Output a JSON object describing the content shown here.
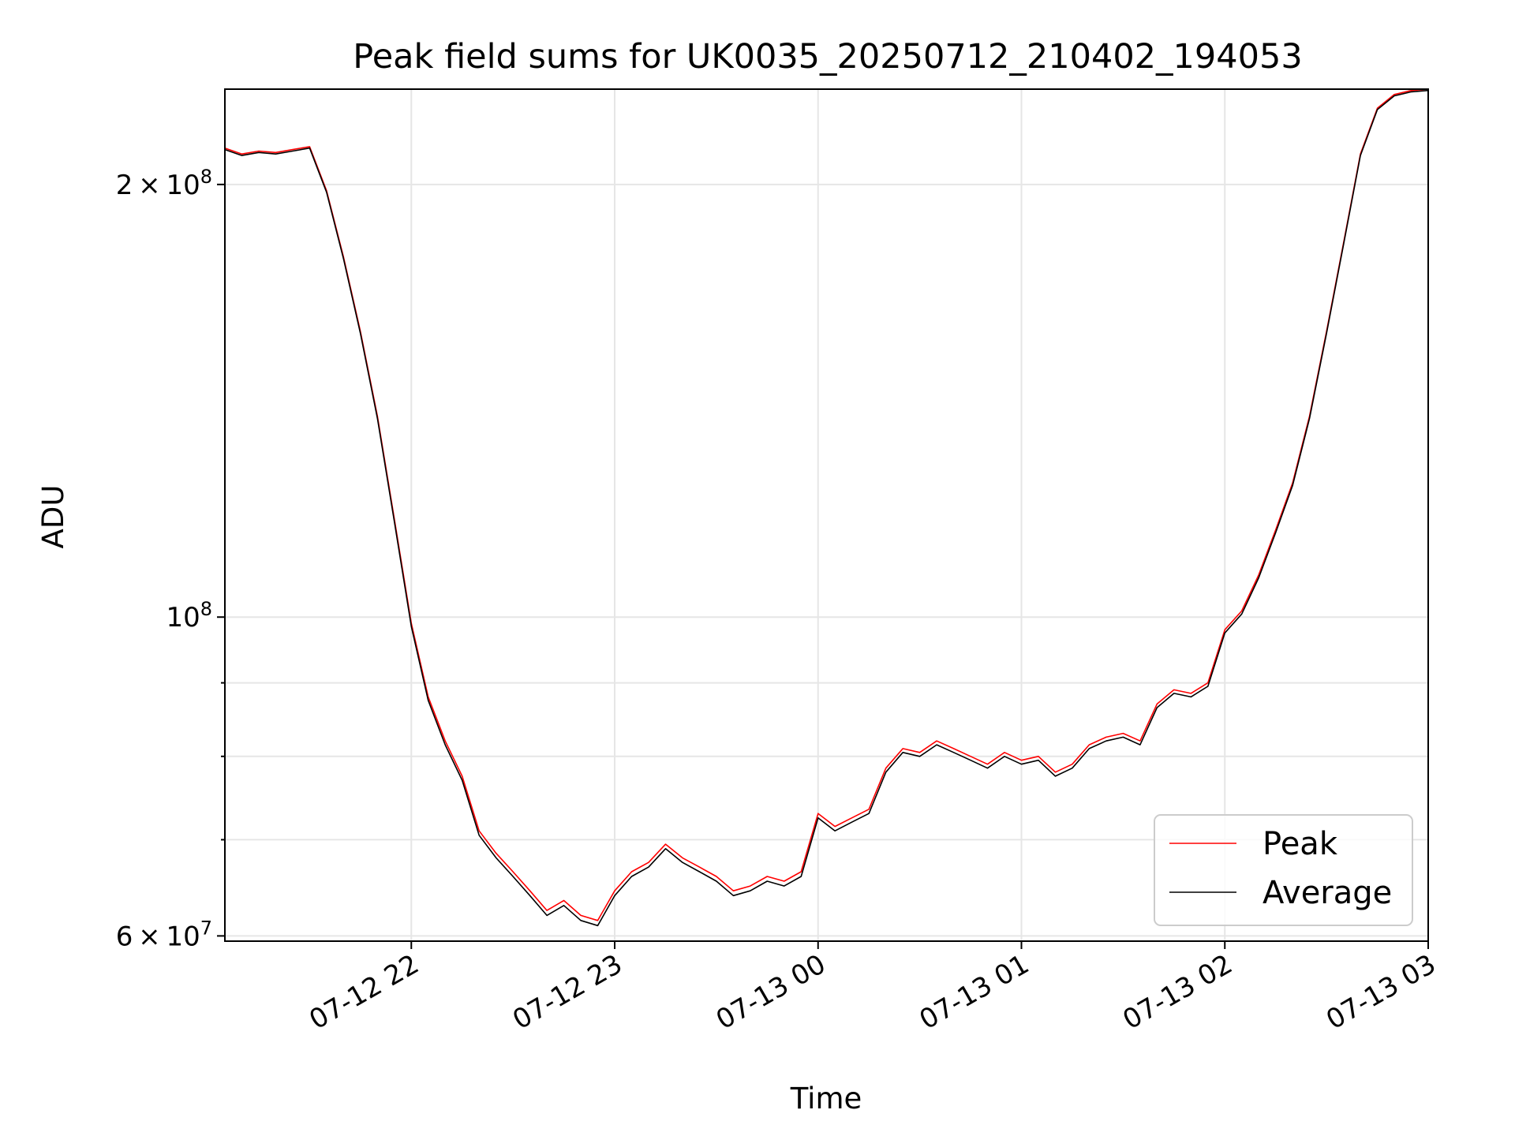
{
  "chart_data": {
    "type": "line",
    "title": "Peak field sums for UK0035_20250712_210402_194053",
    "xlabel": "Time",
    "ylabel": "ADU",
    "yscale": "log",
    "ylim": [
      59500000,
      233000000
    ],
    "xlim": [
      "2025-07-12 21:05",
      "2025-07-13 03:00"
    ],
    "x_ticks": [
      {
        "t": "2025-07-12 22:00",
        "label": "07-12 22"
      },
      {
        "t": "2025-07-12 23:00",
        "label": "07-12 23"
      },
      {
        "t": "2025-07-13 00:00",
        "label": "07-13 00"
      },
      {
        "t": "2025-07-13 01:00",
        "label": "07-13 01"
      },
      {
        "t": "2025-07-13 02:00",
        "label": "07-13 02"
      },
      {
        "t": "2025-07-13 03:00",
        "label": "07-13 03"
      }
    ],
    "y_ticks_major": [
      {
        "v": 60000000,
        "base": "6",
        "mult": "×",
        "pow": "10",
        "exp": "7"
      },
      {
        "v": 100000000,
        "base": "",
        "mult": "",
        "pow": "10",
        "exp": "8"
      },
      {
        "v": 200000000,
        "base": "2",
        "mult": "×",
        "pow": "10",
        "exp": "8"
      }
    ],
    "y_ticks_minor": [
      70000000,
      80000000,
      90000000
    ],
    "grid": true,
    "legend_position": "lower-right",
    "series": [
      {
        "name": "Peak",
        "color": "#ff0000",
        "points": [
          [
            "2025-07-12 21:05",
            212000000
          ],
          [
            "2025-07-12 21:10",
            210000000
          ],
          [
            "2025-07-12 21:15",
            211000000
          ],
          [
            "2025-07-12 21:20",
            210500000
          ],
          [
            "2025-07-12 21:25",
            211500000
          ],
          [
            "2025-07-12 21:30",
            212500000
          ],
          [
            "2025-07-12 21:35",
            198000000
          ],
          [
            "2025-07-12 21:40",
            178000000
          ],
          [
            "2025-07-12 21:45",
            158000000
          ],
          [
            "2025-07-12 21:50",
            138000000
          ],
          [
            "2025-07-12 21:55",
            117000000
          ],
          [
            "2025-07-12 22:00",
            99000000
          ],
          [
            "2025-07-12 22:05",
            88000000
          ],
          [
            "2025-07-12 22:10",
            82000000
          ],
          [
            "2025-07-12 22:15",
            77500000
          ],
          [
            "2025-07-12 22:20",
            71000000
          ],
          [
            "2025-07-12 22:25",
            68500000
          ],
          [
            "2025-07-12 22:30",
            66500000
          ],
          [
            "2025-07-12 22:35",
            64500000
          ],
          [
            "2025-07-12 22:40",
            62500000
          ],
          [
            "2025-07-12 22:45",
            63500000
          ],
          [
            "2025-07-12 22:50",
            62000000
          ],
          [
            "2025-07-12 22:55",
            61500000
          ],
          [
            "2025-07-12 23:00",
            64500000
          ],
          [
            "2025-07-12 23:05",
            66500000
          ],
          [
            "2025-07-12 23:10",
            67500000
          ],
          [
            "2025-07-12 23:15",
            69500000
          ],
          [
            "2025-07-12 23:20",
            68000000
          ],
          [
            "2025-07-12 23:25",
            67000000
          ],
          [
            "2025-07-12 23:30",
            66000000
          ],
          [
            "2025-07-12 23:35",
            64500000
          ],
          [
            "2025-07-12 23:40",
            65000000
          ],
          [
            "2025-07-12 23:45",
            66000000
          ],
          [
            "2025-07-12 23:50",
            65500000
          ],
          [
            "2025-07-12 23:55",
            66500000
          ],
          [
            "2025-07-13 00:00",
            73000000
          ],
          [
            "2025-07-13 00:05",
            71500000
          ],
          [
            "2025-07-13 00:10",
            72500000
          ],
          [
            "2025-07-13 00:15",
            73500000
          ],
          [
            "2025-07-13 00:20",
            78500000
          ],
          [
            "2025-07-13 00:25",
            81000000
          ],
          [
            "2025-07-13 00:30",
            80500000
          ],
          [
            "2025-07-13 00:35",
            82000000
          ],
          [
            "2025-07-13 00:40",
            81000000
          ],
          [
            "2025-07-13 00:45",
            80000000
          ],
          [
            "2025-07-13 00:50",
            79000000
          ],
          [
            "2025-07-13 00:55",
            80500000
          ],
          [
            "2025-07-13 01:00",
            79500000
          ],
          [
            "2025-07-13 01:05",
            80000000
          ],
          [
            "2025-07-13 01:10",
            78000000
          ],
          [
            "2025-07-13 01:15",
            79000000
          ],
          [
            "2025-07-13 01:20",
            81500000
          ],
          [
            "2025-07-13 01:25",
            82500000
          ],
          [
            "2025-07-13 01:30",
            83000000
          ],
          [
            "2025-07-13 01:35",
            82000000
          ],
          [
            "2025-07-13 01:40",
            87000000
          ],
          [
            "2025-07-13 01:45",
            89000000
          ],
          [
            "2025-07-13 01:50",
            88500000
          ],
          [
            "2025-07-13 01:55",
            90000000
          ],
          [
            "2025-07-13 02:00",
            98000000
          ],
          [
            "2025-07-13 02:05",
            101000000
          ],
          [
            "2025-07-13 02:10",
            107000000
          ],
          [
            "2025-07-13 02:15",
            115000000
          ],
          [
            "2025-07-13 02:20",
            124000000
          ],
          [
            "2025-07-13 02:25",
            138000000
          ],
          [
            "2025-07-13 02:30",
            158000000
          ],
          [
            "2025-07-13 02:35",
            182000000
          ],
          [
            "2025-07-13 02:40",
            210000000
          ],
          [
            "2025-07-13 02:45",
            226000000
          ],
          [
            "2025-07-13 02:50",
            231000000
          ],
          [
            "2025-07-13 02:55",
            232500000
          ],
          [
            "2025-07-13 03:00",
            233000000
          ]
        ]
      },
      {
        "name": "Average",
        "color": "#000000",
        "points": [
          [
            "2025-07-12 21:05",
            211500000
          ],
          [
            "2025-07-12 21:10",
            209500000
          ],
          [
            "2025-07-12 21:15",
            210500000
          ],
          [
            "2025-07-12 21:20",
            210000000
          ],
          [
            "2025-07-12 21:25",
            211000000
          ],
          [
            "2025-07-12 21:30",
            212000000
          ],
          [
            "2025-07-12 21:35",
            197500000
          ],
          [
            "2025-07-12 21:40",
            177500000
          ],
          [
            "2025-07-12 21:45",
            157500000
          ],
          [
            "2025-07-12 21:50",
            137500000
          ],
          [
            "2025-07-12 21:55",
            116500000
          ],
          [
            "2025-07-12 22:00",
            98500000
          ],
          [
            "2025-07-12 22:05",
            87500000
          ],
          [
            "2025-07-12 22:10",
            81500000
          ],
          [
            "2025-07-12 22:15",
            77000000
          ],
          [
            "2025-07-12 22:20",
            70500000
          ],
          [
            "2025-07-12 22:25",
            68000000
          ],
          [
            "2025-07-12 22:30",
            66000000
          ],
          [
            "2025-07-12 22:35",
            64000000
          ],
          [
            "2025-07-12 22:40",
            62000000
          ],
          [
            "2025-07-12 22:45",
            63000000
          ],
          [
            "2025-07-12 22:50",
            61500000
          ],
          [
            "2025-07-12 22:55",
            61000000
          ],
          [
            "2025-07-12 23:00",
            64000000
          ],
          [
            "2025-07-12 23:05",
            66000000
          ],
          [
            "2025-07-12 23:10",
            67000000
          ],
          [
            "2025-07-12 23:15",
            69000000
          ],
          [
            "2025-07-12 23:20",
            67500000
          ],
          [
            "2025-07-12 23:25",
            66500000
          ],
          [
            "2025-07-12 23:30",
            65500000
          ],
          [
            "2025-07-12 23:35",
            64000000
          ],
          [
            "2025-07-12 23:40",
            64500000
          ],
          [
            "2025-07-12 23:45",
            65500000
          ],
          [
            "2025-07-12 23:50",
            65000000
          ],
          [
            "2025-07-12 23:55",
            66000000
          ],
          [
            "2025-07-13 00:00",
            72500000
          ],
          [
            "2025-07-13 00:05",
            71000000
          ],
          [
            "2025-07-13 00:10",
            72000000
          ],
          [
            "2025-07-13 00:15",
            73000000
          ],
          [
            "2025-07-13 00:20",
            78000000
          ],
          [
            "2025-07-13 00:25",
            80500000
          ],
          [
            "2025-07-13 00:30",
            80000000
          ],
          [
            "2025-07-13 00:35",
            81500000
          ],
          [
            "2025-07-13 00:40",
            80500000
          ],
          [
            "2025-07-13 00:45",
            79500000
          ],
          [
            "2025-07-13 00:50",
            78500000
          ],
          [
            "2025-07-13 00:55",
            80000000
          ],
          [
            "2025-07-13 01:00",
            79000000
          ],
          [
            "2025-07-13 01:05",
            79500000
          ],
          [
            "2025-07-13 01:10",
            77500000
          ],
          [
            "2025-07-13 01:15",
            78500000
          ],
          [
            "2025-07-13 01:20",
            81000000
          ],
          [
            "2025-07-13 01:25",
            82000000
          ],
          [
            "2025-07-13 01:30",
            82500000
          ],
          [
            "2025-07-13 01:35",
            81500000
          ],
          [
            "2025-07-13 01:40",
            86500000
          ],
          [
            "2025-07-13 01:45",
            88500000
          ],
          [
            "2025-07-13 01:50",
            88000000
          ],
          [
            "2025-07-13 01:55",
            89500000
          ],
          [
            "2025-07-13 02:00",
            97500000
          ],
          [
            "2025-07-13 02:05",
            100500000
          ],
          [
            "2025-07-13 02:10",
            106500000
          ],
          [
            "2025-07-13 02:15",
            114500000
          ],
          [
            "2025-07-13 02:20",
            123500000
          ],
          [
            "2025-07-13 02:25",
            137500000
          ],
          [
            "2025-07-13 02:30",
            157500000
          ],
          [
            "2025-07-13 02:35",
            181500000
          ],
          [
            "2025-07-13 02:40",
            209500000
          ],
          [
            "2025-07-13 02:45",
            225500000
          ],
          [
            "2025-07-13 02:50",
            230500000
          ],
          [
            "2025-07-13 02:55",
            232000000
          ],
          [
            "2025-07-13 03:00",
            232500000
          ]
        ]
      }
    ]
  }
}
